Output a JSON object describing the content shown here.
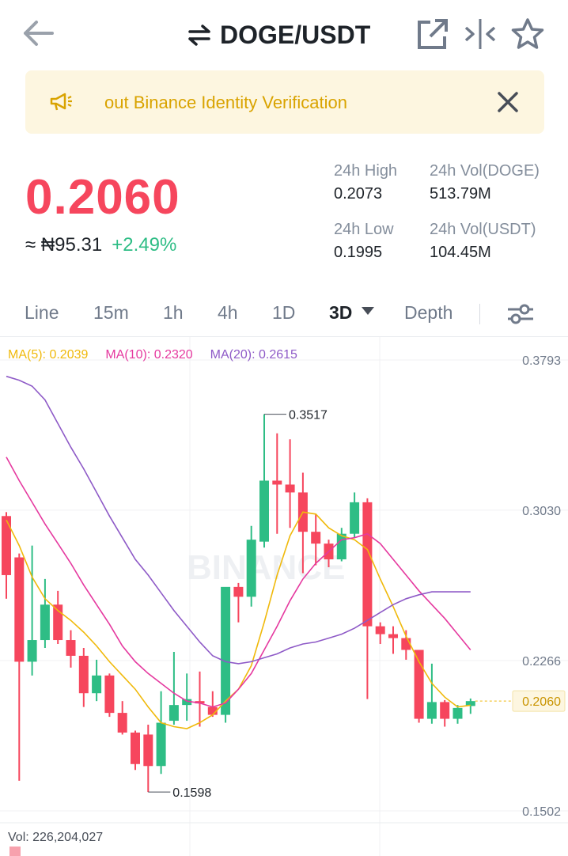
{
  "header": {
    "pair": "DOGE/USDT",
    "icons": [
      "back-arrow-icon",
      "swap-icon",
      "external-link-icon",
      "compare-icon",
      "star-icon"
    ]
  },
  "banner": {
    "text": "out Binance Identity Verification",
    "icons": [
      "megaphone-icon",
      "close-icon"
    ]
  },
  "ticker": {
    "price": "0.2060",
    "fiat": "≈ ₦95.31",
    "change": "+2.49%",
    "high_label": "24h High",
    "high": "0.2073",
    "low_label": "24h Low",
    "low": "0.1995",
    "vol_base_label": "24h Vol(DOGE)",
    "vol_base": "513.79M",
    "vol_quote_label": "24h Vol(USDT)",
    "vol_quote": "104.45M"
  },
  "tabs": {
    "line": "Line",
    "m15": "15m",
    "h1": "1h",
    "h4": "4h",
    "d1": "1D",
    "d3": "3D",
    "depth": "Depth",
    "active": "3D"
  },
  "legend": {
    "ma5": "MA(5): 0.2039",
    "ma10": "MA(10): 0.2320",
    "ma20": "MA(20): 0.2615"
  },
  "volume": {
    "text": "Vol: 226,204,027"
  },
  "colors": {
    "up": "#2ebd85",
    "down": "#f6465d",
    "ma5": "#f0b90b",
    "ma10": "#e5399f",
    "ma20": "#8e5ac7",
    "banner_bg": "#fdf6e0",
    "banner_text": "#d9a300"
  },
  "chart_data": {
    "type": "candlestick",
    "y_ticks": [
      "0.3793",
      "0.3030",
      "0.2266",
      "0.1502"
    ],
    "ylim": [
      0.1502,
      0.3793
    ],
    "last_price": "0.2060",
    "high_marker": "0.3517",
    "low_marker": "0.1598",
    "candles": [
      {
        "o": 0.3,
        "h": 0.302,
        "l": 0.258,
        "c": 0.27
      },
      {
        "o": 0.279,
        "h": 0.281,
        "l": 0.1655,
        "c": 0.226
      },
      {
        "o": 0.226,
        "h": 0.285,
        "l": 0.219,
        "c": 0.237
      },
      {
        "o": 0.237,
        "h": 0.268,
        "l": 0.233,
        "c": 0.255
      },
      {
        "o": 0.255,
        "h": 0.262,
        "l": 0.235,
        "c": 0.237
      },
      {
        "o": 0.237,
        "h": 0.242,
        "l": 0.223,
        "c": 0.229
      },
      {
        "o": 0.229,
        "h": 0.233,
        "l": 0.203,
        "c": 0.21
      },
      {
        "o": 0.21,
        "h": 0.227,
        "l": 0.206,
        "c": 0.219
      },
      {
        "o": 0.219,
        "h": 0.22,
        "l": 0.198,
        "c": 0.2
      },
      {
        "o": 0.2,
        "h": 0.206,
        "l": 0.189,
        "c": 0.19
      },
      {
        "o": 0.19,
        "h": 0.191,
        "l": 0.171,
        "c": 0.174
      },
      {
        "o": 0.189,
        "h": 0.194,
        "l": 0.1598,
        "c": 0.173
      },
      {
        "o": 0.173,
        "h": 0.211,
        "l": 0.169,
        "c": 0.195
      },
      {
        "o": 0.196,
        "h": 0.231,
        "l": 0.194,
        "c": 0.204
      },
      {
        "o": 0.204,
        "h": 0.22,
        "l": 0.196,
        "c": 0.207
      },
      {
        "o": 0.206,
        "h": 0.221,
        "l": 0.193,
        "c": 0.205
      },
      {
        "o": 0.203,
        "h": 0.211,
        "l": 0.198,
        "c": 0.199
      },
      {
        "o": 0.199,
        "h": 0.262,
        "l": 0.195,
        "c": 0.264
      },
      {
        "o": 0.264,
        "h": 0.266,
        "l": 0.246,
        "c": 0.259
      },
      {
        "o": 0.259,
        "h": 0.295,
        "l": 0.254,
        "c": 0.288
      },
      {
        "o": 0.287,
        "h": 0.3517,
        "l": 0.284,
        "c": 0.318
      },
      {
        "o": 0.318,
        "h": 0.342,
        "l": 0.291,
        "c": 0.316
      },
      {
        "o": 0.316,
        "h": 0.339,
        "l": 0.294,
        "c": 0.312
      },
      {
        "o": 0.312,
        "h": 0.322,
        "l": 0.271,
        "c": 0.292
      },
      {
        "o": 0.292,
        "h": 0.301,
        "l": 0.275,
        "c": 0.286
      },
      {
        "o": 0.286,
        "h": 0.288,
        "l": 0.274,
        "c": 0.278
      },
      {
        "o": 0.278,
        "h": 0.294,
        "l": 0.277,
        "c": 0.291
      },
      {
        "o": 0.291,
        "h": 0.312,
        "l": 0.289,
        "c": 0.307
      },
      {
        "o": 0.307,
        "h": 0.309,
        "l": 0.207,
        "c": 0.244
      },
      {
        "o": 0.244,
        "h": 0.246,
        "l": 0.235,
        "c": 0.24
      },
      {
        "o": 0.24,
        "h": 0.244,
        "l": 0.23,
        "c": 0.238
      },
      {
        "o": 0.238,
        "h": 0.242,
        "l": 0.227,
        "c": 0.232
      },
      {
        "o": 0.232,
        "h": 0.232,
        "l": 0.195,
        "c": 0.197
      },
      {
        "o": 0.197,
        "h": 0.225,
        "l": 0.1945,
        "c": 0.2055
      },
      {
        "o": 0.2055,
        "h": 0.2065,
        "l": 0.193,
        "c": 0.197
      },
      {
        "o": 0.197,
        "h": 0.204,
        "l": 0.1945,
        "c": 0.2025
      },
      {
        "o": 0.2035,
        "h": 0.2073,
        "l": 0.1995,
        "c": 0.206
      }
    ],
    "ma5": [
      0.298,
      0.285,
      0.269,
      0.258,
      0.252,
      0.247,
      0.241,
      0.234,
      0.226,
      0.219,
      0.212,
      0.203,
      0.195,
      0.193,
      0.192,
      0.195,
      0.199,
      0.206,
      0.212,
      0.224,
      0.246,
      0.27,
      0.29,
      0.302,
      0.301,
      0.294,
      0.29,
      0.288,
      0.283,
      0.268,
      0.254,
      0.239,
      0.226,
      0.215,
      0.208,
      0.203,
      0.2039
    ],
    "ma10": [
      0.33,
      0.318,
      0.307,
      0.296,
      0.286,
      0.276,
      0.265,
      0.255,
      0.245,
      0.234,
      0.226,
      0.22,
      0.215,
      0.21,
      0.206,
      0.205,
      0.203,
      0.205,
      0.212,
      0.22,
      0.232,
      0.244,
      0.257,
      0.268,
      0.276,
      0.282,
      0.288,
      0.289,
      0.291,
      0.286,
      0.278,
      0.27,
      0.262,
      0.255,
      0.248,
      0.24,
      0.232
    ],
    "ma20": [
      0.371,
      0.369,
      0.366,
      0.359,
      0.347,
      0.335,
      0.324,
      0.312,
      0.3,
      0.289,
      0.278,
      0.27,
      0.261,
      0.252,
      0.244,
      0.236,
      0.229,
      0.226,
      0.225,
      0.226,
      0.228,
      0.23,
      0.233,
      0.235,
      0.236,
      0.238,
      0.24,
      0.243,
      0.247,
      0.251,
      0.255,
      0.258,
      0.26,
      0.2615,
      0.2615,
      0.2615,
      0.2615
    ]
  }
}
